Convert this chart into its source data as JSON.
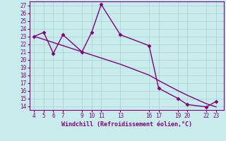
{
  "xlabel": "Windchill (Refroidissement éolien,°C)",
  "x_data": [
    4,
    5,
    6,
    7,
    9,
    10,
    11,
    13,
    16,
    17,
    19,
    20,
    22,
    23
  ],
  "y_main": [
    23.0,
    23.5,
    20.8,
    23.2,
    21.0,
    23.5,
    27.1,
    23.2,
    21.8,
    16.3,
    15.0,
    14.2,
    13.9,
    14.6
  ],
  "y_trend": [
    23.0,
    22.6,
    22.2,
    21.8,
    21.0,
    20.6,
    20.2,
    19.4,
    18.0,
    17.3,
    16.0,
    15.4,
    14.3,
    13.9
  ],
  "line_color": "#800080",
  "bg_color": "#c8ecec",
  "grid_color": "#a8d0d0",
  "tick_color": "#800080",
  "label_color": "#800080",
  "xlim": [
    3.5,
    23.8
  ],
  "ylim": [
    13.5,
    27.5
  ],
  "xticks": [
    4,
    5,
    6,
    7,
    9,
    10,
    11,
    13,
    16,
    17,
    19,
    20,
    22,
    23
  ],
  "yticks": [
    14,
    15,
    16,
    17,
    18,
    19,
    20,
    21,
    22,
    23,
    24,
    25,
    26,
    27
  ],
  "marker": "D",
  "marker_size": 2.5,
  "line_width": 1.0
}
